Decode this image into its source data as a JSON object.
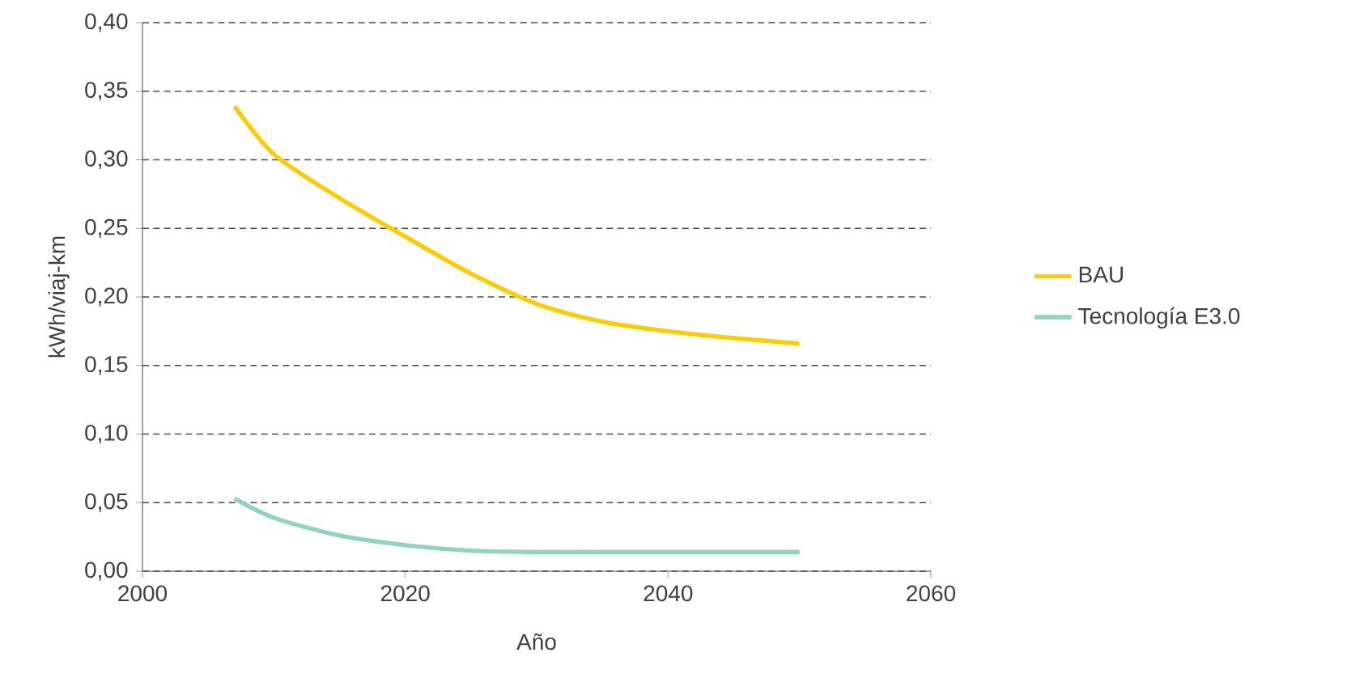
{
  "chart_data": {
    "type": "line",
    "xlabel": "Año",
    "ylabel": "kWh/viaj-km",
    "xlim": [
      2000,
      2060
    ],
    "xticks": [
      2000,
      2020,
      2040,
      2060
    ],
    "ylim": [
      0,
      0.4
    ],
    "yticks": [
      {
        "value": 0,
        "label": "0,00"
      },
      {
        "value": 0.05,
        "label": "0,05"
      },
      {
        "value": 0.1,
        "label": "0,10"
      },
      {
        "value": 0.15,
        "label": "0,15"
      },
      {
        "value": 0.2,
        "label": "0,20"
      },
      {
        "value": 0.25,
        "label": "0,25"
      },
      {
        "value": 0.3,
        "label": "0,30"
      },
      {
        "value": 0.35,
        "label": "0,35"
      },
      {
        "value": 0.4,
        "label": "0,40"
      }
    ],
    "grid": "y",
    "legend": "right",
    "marker": "none",
    "line_style": "solid",
    "x": [
      2007,
      2010,
      2015,
      2020,
      2025,
      2030,
      2035,
      2040,
      2045,
      2050
    ],
    "series": [
      {
        "name": "BAU",
        "color": "#ffcc00",
        "values": [
          0.339,
          0.304,
          0.272,
          0.244,
          0.217,
          0.195,
          0.182,
          0.175,
          0.17,
          0.166
        ]
      },
      {
        "name": "Tecnología E3.0",
        "color": "#8fd3c1",
        "values": [
          0.053,
          0.039,
          0.026,
          0.019,
          0.015,
          0.014,
          0.014,
          0.014,
          0.014,
          0.014
        ]
      }
    ]
  }
}
